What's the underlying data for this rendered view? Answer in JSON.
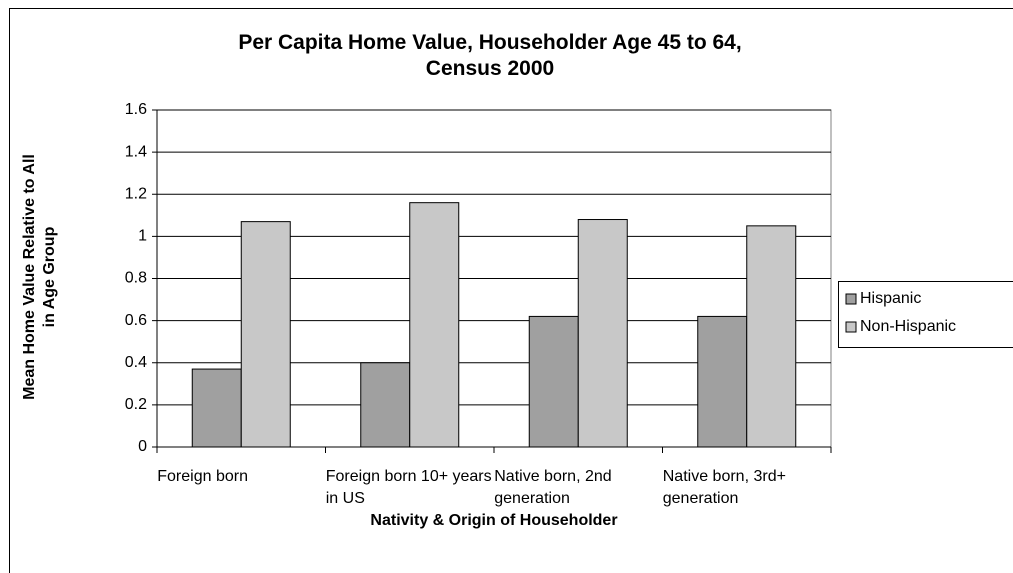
{
  "chart_data": {
    "type": "bar",
    "title": "Per Capita Home Value, Householder Age 45 to 64,\nCensus 2000",
    "x_label": "Nativity & Origin of Householder",
    "y_label": "Mean Home Value Relative to All\nin Age Group",
    "categories": [
      "Foreign born",
      "Foreign born\n10+ years in US",
      "Native born, 2nd\ngeneration",
      "Native born,\n3rd+ generation"
    ],
    "series": [
      {
        "name": "Hispanic",
        "color": "#a0a0a0",
        "values": [
          0.37,
          0.4,
          0.62,
          0.62
        ]
      },
      {
        "name": "Non-Hispanic",
        "color": "#c8c8c8",
        "values": [
          1.07,
          1.16,
          1.08,
          1.05
        ]
      }
    ],
    "ylim": [
      0,
      1.6
    ],
    "yticks": [
      0,
      0.2,
      0.4,
      0.6,
      0.8,
      1,
      1.2,
      1.4,
      1.6
    ],
    "grid": true,
    "legend": "right"
  }
}
